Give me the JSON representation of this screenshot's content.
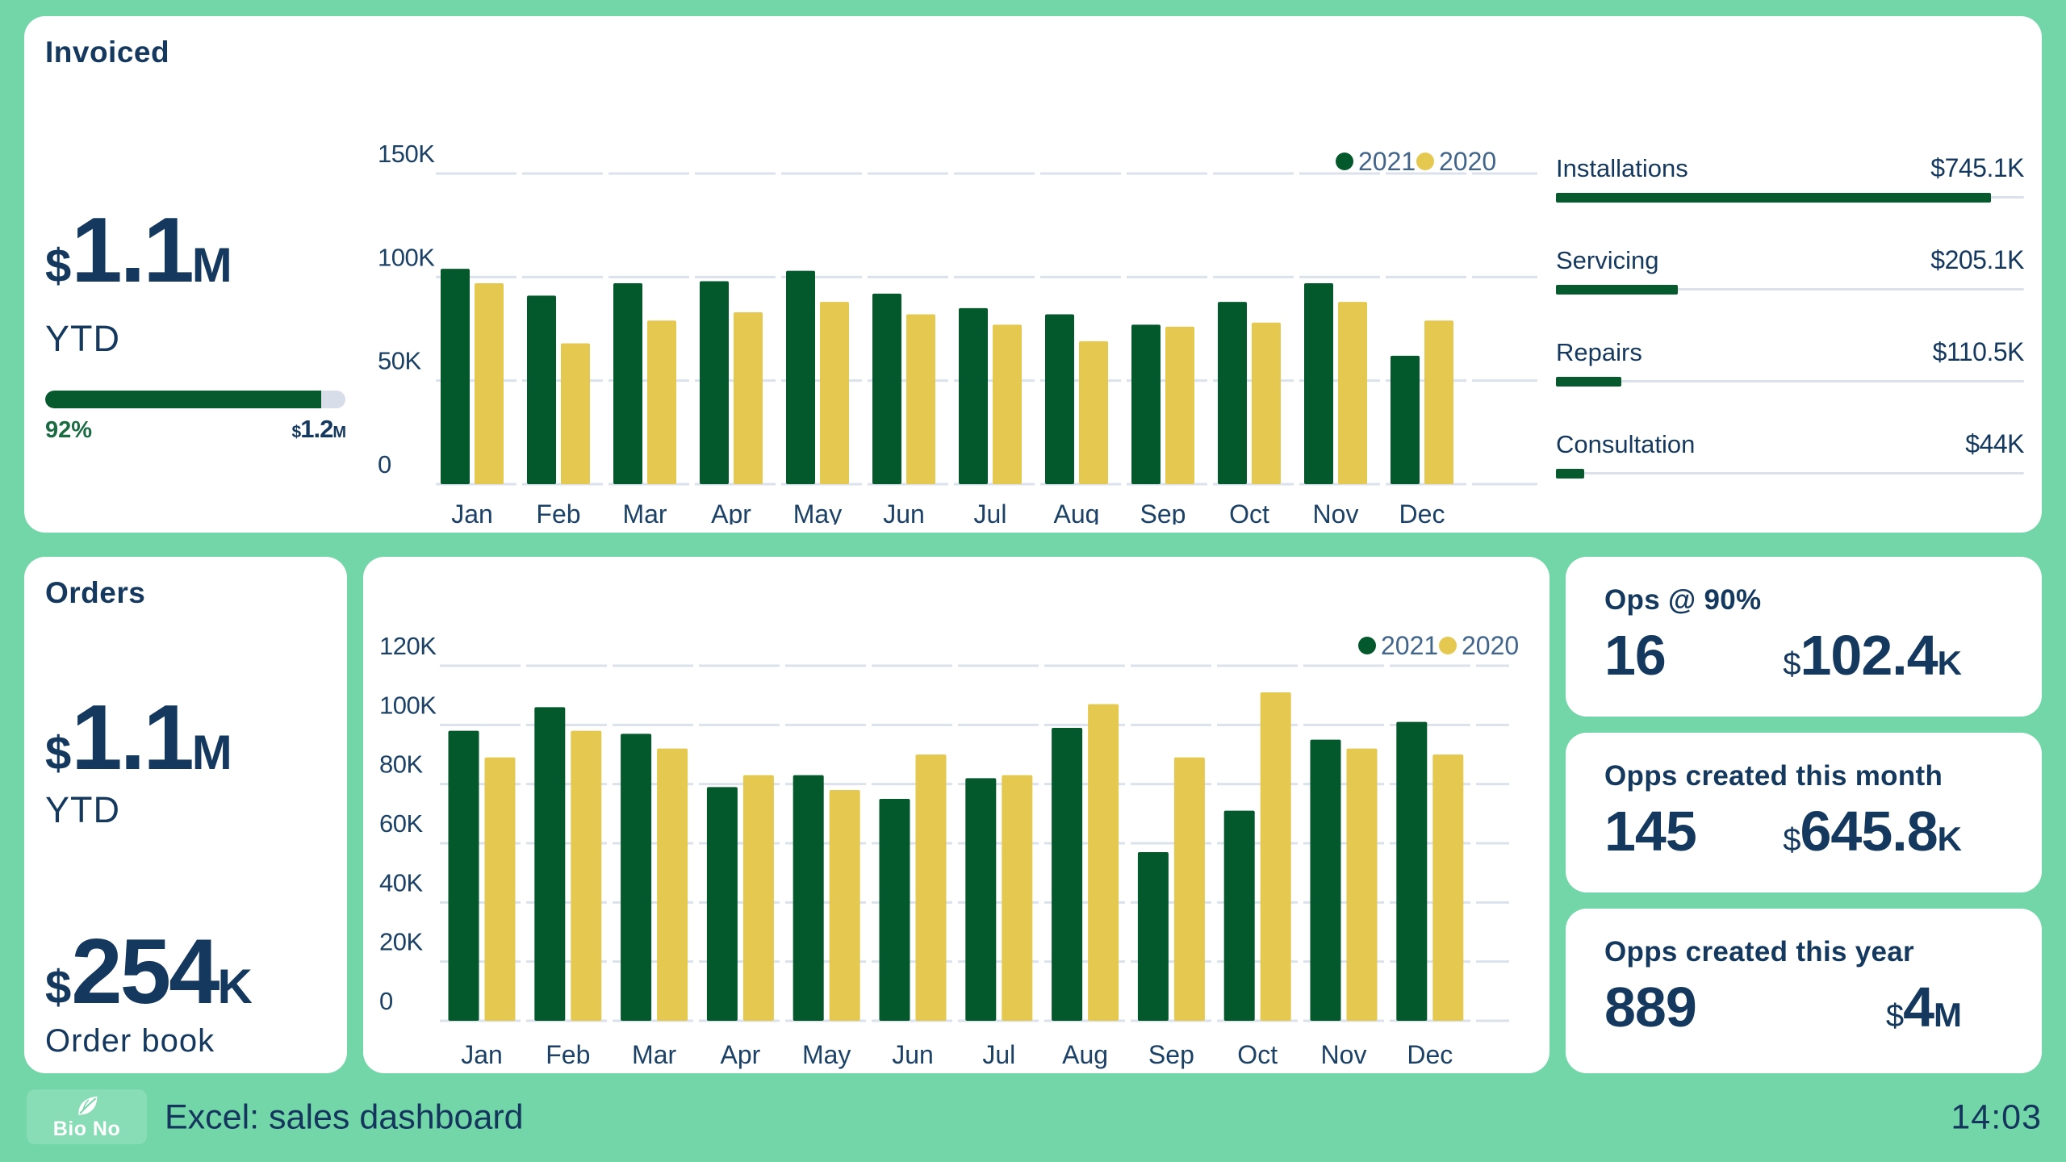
{
  "colors": {
    "background": "#72d6a8",
    "card": "#ffffff",
    "navy": "#15395e",
    "tick_navy": "#1c4166",
    "legend_text": "#42658b",
    "green_bar": "#04592c",
    "yellow_bar": "#e5c84f",
    "gridline": "#dbe2ec",
    "track_gray": "#d8dee9",
    "percent_green": "#1b6b42"
  },
  "invoiced": {
    "title": "Invoiced",
    "kpi": {
      "currency": "$",
      "value": "1.1",
      "unit": "M"
    },
    "kpi_label": "YTD",
    "progress": {
      "percent": 92,
      "percent_label": "92%",
      "target_currency": "$",
      "target_value": "1.2",
      "target_unit": "M"
    },
    "breakdown": [
      {
        "label": "Installations",
        "value": "$745.1K",
        "percent": 93
      },
      {
        "label": "Servicing",
        "value": "$205.1K",
        "percent": 26
      },
      {
        "label": "Repairs",
        "value": "$110.5K",
        "percent": 14
      },
      {
        "label": "Consultation",
        "value": "$44K",
        "percent": 6
      }
    ]
  },
  "orders": {
    "title": "Orders",
    "kpi": {
      "currency": "$",
      "value": "1.1",
      "unit": "M"
    },
    "kpi_label": "YTD",
    "kpi2": {
      "currency": "$",
      "value": "254",
      "unit": "K"
    },
    "kpi2_label": "Order book"
  },
  "ops_cards": [
    {
      "title": "Ops @ 90%",
      "count": "16",
      "money": {
        "currency": "$",
        "value": "102.4",
        "suffix": "K"
      }
    },
    {
      "title": "Opps created this month",
      "count": "145",
      "money": {
        "currency": "$",
        "value": "645.8",
        "suffix": "K"
      }
    },
    {
      "title": "Opps created this year",
      "count": "889",
      "money": {
        "currency": "$",
        "value": "4",
        "suffix": "M"
      }
    }
  ],
  "footer": {
    "brand": "Bio No",
    "title": "Excel: sales dashboard",
    "time": "14:03"
  },
  "chart_data": [
    {
      "id": "invoiced",
      "type": "bar",
      "title": "Invoiced by month",
      "categories": [
        "Jan",
        "Feb",
        "Mar",
        "Apr",
        "May",
        "Jun",
        "Jul",
        "Aug",
        "Sep",
        "Oct",
        "Nov",
        "Dec"
      ],
      "series": [
        {
          "name": "2021",
          "color": "#04592c",
          "values": [
            104,
            91,
            97,
            98,
            103,
            92,
            85,
            82,
            77,
            88,
            97,
            62
          ]
        },
        {
          "name": "2020",
          "color": "#e5c84f",
          "values": [
            97,
            68,
            79,
            83,
            88,
            82,
            77,
            69,
            76,
            78,
            88,
            79
          ]
        }
      ],
      "value_unit": "K",
      "ylim": [
        0,
        150
      ],
      "yticks": [
        {
          "label": "150K",
          "value": 150
        },
        {
          "label": "100K",
          "value": 100
        },
        {
          "label": "50K",
          "value": 50
        },
        {
          "label": "0",
          "value": 0
        }
      ],
      "grid": true,
      "legend_position": "top-right"
    },
    {
      "id": "orders",
      "type": "bar",
      "title": "Orders by month",
      "categories": [
        "Jan",
        "Feb",
        "Mar",
        "Apr",
        "May",
        "Jun",
        "Jul",
        "Aug",
        "Sep",
        "Oct",
        "Nov",
        "Dec"
      ],
      "series": [
        {
          "name": "2021",
          "color": "#04592c",
          "values": [
            98,
            106,
            97,
            79,
            83,
            75,
            82,
            99,
            57,
            71,
            95,
            101
          ]
        },
        {
          "name": "2020",
          "color": "#e5c84f",
          "values": [
            89,
            98,
            92,
            83,
            78,
            90,
            83,
            107,
            89,
            111,
            92,
            90
          ]
        }
      ],
      "value_unit": "K",
      "ylim": [
        0,
        120
      ],
      "yticks": [
        {
          "label": "120K",
          "value": 120
        },
        {
          "label": "100K",
          "value": 100
        },
        {
          "label": "80K",
          "value": 80
        },
        {
          "label": "60K",
          "value": 60
        },
        {
          "label": "40K",
          "value": 40
        },
        {
          "label": "20K",
          "value": 20
        },
        {
          "label": "0",
          "value": 0
        }
      ],
      "grid": true,
      "legend_position": "top-right"
    }
  ]
}
